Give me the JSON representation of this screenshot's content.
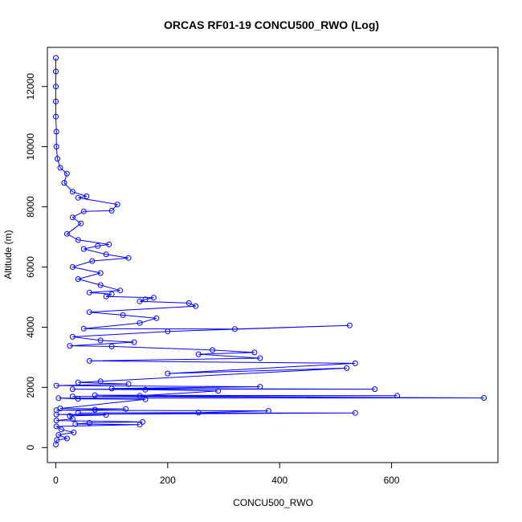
{
  "chart_data": {
    "type": "scatter",
    "title": "ORCAS RF01-19 CONCU500_RWO (Log)",
    "xlabel": "CONCU500_RWO",
    "ylabel": "Altitude (m)",
    "xlim": [
      -15,
      790
    ],
    "ylim": [
      -500,
      13300
    ],
    "x_ticks": [
      0,
      200,
      400,
      600
    ],
    "y_ticks": [
      0,
      2000,
      4000,
      6000,
      8000,
      10000,
      12000
    ],
    "grid": false,
    "legend": "none",
    "series": [
      {
        "style": "line-with-open-circles",
        "points": [
          [
            0,
            100
          ],
          [
            2,
            250
          ],
          [
            20,
            300
          ],
          [
            5,
            420
          ],
          [
            32,
            500
          ],
          [
            10,
            600
          ],
          [
            1,
            700
          ],
          [
            150,
            760
          ],
          [
            35,
            780
          ],
          [
            60,
            820
          ],
          [
            155,
            850
          ],
          [
            1,
            900
          ],
          [
            30,
            950
          ],
          [
            25,
            1050
          ],
          [
            90,
            1080
          ],
          [
            1,
            1100
          ],
          [
            535,
            1150
          ],
          [
            40,
            1150
          ],
          [
            255,
            1160
          ],
          [
            380,
            1220
          ],
          [
            1,
            1240
          ],
          [
            70,
            1260
          ],
          [
            125,
            1280
          ],
          [
            8,
            1300
          ],
          [
            160,
            1600
          ],
          [
            40,
            1620
          ],
          [
            5,
            1640
          ],
          [
            765,
            1650
          ],
          [
            30,
            1700
          ],
          [
            610,
            1720
          ],
          [
            70,
            1740
          ],
          [
            150,
            1720
          ],
          [
            290,
            1880
          ],
          [
            160,
            1920
          ],
          [
            30,
            1940
          ],
          [
            570,
            1940
          ],
          [
            100,
            1960
          ],
          [
            365,
            2020
          ],
          [
            1,
            2060
          ],
          [
            130,
            2110
          ],
          [
            40,
            2160
          ],
          [
            80,
            2200
          ],
          [
            520,
            2640
          ],
          [
            200,
            2460
          ],
          [
            535,
            2800
          ],
          [
            60,
            2880
          ],
          [
            365,
            2970
          ],
          [
            255,
            3100
          ],
          [
            355,
            3160
          ],
          [
            280,
            3240
          ],
          [
            100,
            3360
          ],
          [
            25,
            3380
          ],
          [
            140,
            3500
          ],
          [
            80,
            3560
          ],
          [
            30,
            3680
          ],
          [
            200,
            3860
          ],
          [
            525,
            4060
          ],
          [
            320,
            3940
          ],
          [
            50,
            3950
          ],
          [
            150,
            4140
          ],
          [
            180,
            4300
          ],
          [
            120,
            4400
          ],
          [
            60,
            4500
          ],
          [
            250,
            4700
          ],
          [
            238,
            4800
          ],
          [
            150,
            4860
          ],
          [
            160,
            4920
          ],
          [
            175,
            4980
          ],
          [
            90,
            5020
          ],
          [
            100,
            5100
          ],
          [
            60,
            5150
          ],
          [
            115,
            5220
          ],
          [
            80,
            5400
          ],
          [
            40,
            5600
          ],
          [
            80,
            5800
          ],
          [
            30,
            6000
          ],
          [
            65,
            6200
          ],
          [
            130,
            6300
          ],
          [
            90,
            6420
          ],
          [
            50,
            6600
          ],
          [
            75,
            6700
          ],
          [
            95,
            6750
          ],
          [
            40,
            6900
          ],
          [
            20,
            7100
          ],
          [
            45,
            7450
          ],
          [
            30,
            7650
          ],
          [
            50,
            7850
          ],
          [
            100,
            7870
          ],
          [
            110,
            8080
          ],
          [
            40,
            8300
          ],
          [
            55,
            8350
          ],
          [
            30,
            8500
          ],
          [
            15,
            8800
          ],
          [
            20,
            9100
          ],
          [
            8,
            9300
          ],
          [
            3,
            9600
          ],
          [
            1,
            10000
          ],
          [
            1,
            10500
          ],
          [
            0,
            11000
          ],
          [
            0,
            11500
          ],
          [
            0,
            12000
          ],
          [
            0,
            12500
          ],
          [
            0,
            12950
          ]
        ]
      }
    ],
    "colors": {
      "series": "#0000ff",
      "axis": "#000000",
      "background": "#ffffff"
    }
  }
}
